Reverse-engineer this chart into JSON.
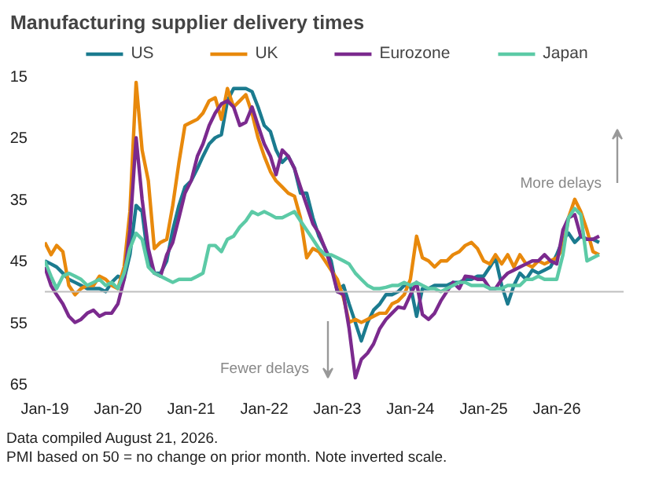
{
  "chart_data": {
    "type": "line",
    "title": "Manufacturing supplier delivery times",
    "x": [
      "2019-01",
      "2019-02",
      "2019-03",
      "2019-04",
      "2019-05",
      "2019-06",
      "2019-07",
      "2019-08",
      "2019-09",
      "2019-10",
      "2019-11",
      "2019-12",
      "2020-01",
      "2020-02",
      "2020-03",
      "2020-04",
      "2020-05",
      "2020-06",
      "2020-07",
      "2020-08",
      "2020-09",
      "2020-10",
      "2020-11",
      "2020-12",
      "2021-01",
      "2021-02",
      "2021-03",
      "2021-04",
      "2021-05",
      "2021-06",
      "2021-07",
      "2021-08",
      "2021-09",
      "2021-10",
      "2021-11",
      "2021-12",
      "2022-01",
      "2022-02",
      "2022-03",
      "2022-04",
      "2022-05",
      "2022-06",
      "2022-07",
      "2022-08",
      "2022-09",
      "2022-10",
      "2022-11",
      "2022-12",
      "2023-01",
      "2023-02",
      "2023-03",
      "2023-04",
      "2023-05",
      "2023-06",
      "2023-07",
      "2023-08",
      "2023-09",
      "2023-10",
      "2023-11",
      "2023-12",
      "2024-01",
      "2024-02",
      "2024-03",
      "2024-04",
      "2024-05",
      "2024-06",
      "2024-07",
      "2024-08",
      "2024-09",
      "2024-10",
      "2024-11",
      "2024-12",
      "2025-01",
      "2025-02",
      "2025-03",
      "2025-04",
      "2025-05",
      "2025-06",
      "2025-07",
      "2025-08",
      "2025-09",
      "2025-10",
      "2025-11",
      "2025-12",
      "2026-01",
      "2026-02",
      "2026-03",
      "2026-04",
      "2026-05",
      "2026-06",
      "2026-07",
      "2026-08"
    ],
    "series": [
      {
        "name": "US",
        "color": "#1b7b8f",
        "values": [
          45,
          45.5,
          46,
          47,
          48,
          48.5,
          49,
          49.5,
          49.5,
          49.5,
          50,
          48.5,
          47.5,
          48,
          44,
          36,
          37,
          45,
          47,
          47,
          45,
          40,
          36,
          33,
          32,
          30,
          28,
          26,
          25,
          24.5,
          19,
          17,
          17,
          17,
          17.5,
          20,
          23,
          24,
          27,
          29,
          28,
          30,
          34,
          34,
          38,
          41,
          43,
          45,
          50,
          49,
          52,
          55,
          58,
          55,
          53,
          52,
          50.5,
          50.5,
          50,
          49,
          49,
          54,
          49.5,
          49.5,
          49,
          49,
          49,
          48.5,
          48.5,
          48,
          48,
          47.5,
          47.5,
          46,
          44.5,
          49,
          52,
          49,
          47,
          48,
          46.5,
          47,
          46.5,
          46,
          44,
          41.5,
          40.5,
          42,
          41,
          41.5,
          41.5,
          42
        ]
      },
      {
        "name": "UK",
        "color": "#e8890c",
        "values": [
          42,
          44,
          42.5,
          43.5,
          49,
          50.5,
          49.5,
          49,
          49,
          47.5,
          48,
          49,
          49.5,
          46,
          37,
          16,
          27,
          32,
          43,
          42,
          41.5,
          36,
          29,
          23,
          22.5,
          22,
          21,
          19,
          18.5,
          22,
          17,
          20,
          19,
          18,
          21,
          25,
          28,
          30.5,
          32,
          33,
          34,
          34.5,
          38,
          44.5,
          43,
          43.5,
          45,
          46.5,
          48,
          51,
          55,
          54.5,
          55,
          54.5,
          54,
          53.5,
          53.5,
          52,
          51.5,
          50.5,
          48,
          41,
          44.5,
          45,
          46,
          45,
          45,
          44,
          43.5,
          42.5,
          42,
          43,
          45,
          45.5,
          44,
          45.5,
          44,
          46,
          44,
          45.5,
          46,
          45,
          45.5,
          45,
          44.5,
          43,
          38,
          35,
          37,
          40,
          43.5,
          44
        ]
      },
      {
        "name": "Eurozone",
        "color": "#7b2a8e",
        "values": [
          46,
          49,
          50.5,
          52,
          54,
          55,
          54.5,
          53.5,
          53,
          54,
          53.5,
          53.5,
          52,
          48,
          40,
          25,
          35,
          43,
          47,
          47.5,
          44,
          42,
          38,
          34,
          32,
          28,
          26,
          23,
          21,
          19.5,
          19,
          20,
          23,
          22.5,
          20,
          23,
          26,
          28,
          31,
          27,
          28,
          30,
          33,
          36,
          39,
          40.5,
          43,
          46,
          50,
          50.5,
          56,
          64,
          61,
          60,
          58.5,
          56,
          54.5,
          53.5,
          52.5,
          52.7,
          50.5,
          48.5,
          53.7,
          54.5,
          53.5,
          51.5,
          50,
          48.5,
          49.5,
          47.5,
          47.6,
          48,
          48,
          49.5,
          49.5,
          48,
          47,
          46.5,
          46,
          45.5,
          45,
          45,
          44,
          45,
          45.5,
          40,
          38,
          37.5,
          41,
          41.5,
          41.5,
          41
        ]
      },
      {
        "name": "Japan",
        "color": "#5ccaa6",
        "values": [
          45,
          47.5,
          49.5,
          47.5,
          47,
          47.5,
          48,
          49,
          48.5,
          48,
          49,
          48.5,
          49.5,
          47,
          43,
          40.5,
          41.5,
          46,
          47,
          47.5,
          48,
          48.5,
          48,
          48,
          48,
          47.5,
          47,
          42.5,
          42.5,
          43.5,
          41.5,
          41,
          39.5,
          38.5,
          37,
          37.5,
          37,
          37.5,
          38,
          38,
          37.5,
          37,
          38.5,
          40,
          41.5,
          43,
          44,
          44,
          44.5,
          45,
          45.5,
          47,
          48,
          49,
          49.5,
          49.5,
          49.3,
          49,
          49,
          48.5,
          49,
          48.5,
          49,
          49.5,
          49.5,
          50,
          49.5,
          49,
          48.5,
          48.5,
          49,
          49,
          49,
          49.5,
          49.5,
          49.5,
          49,
          49,
          49,
          48,
          48,
          47.5,
          48,
          48,
          48,
          44,
          38,
          36.5,
          37.5,
          45,
          44.5,
          44
        ]
      }
    ],
    "xlim": [
      "2019-01",
      "2026-12"
    ],
    "xticks": [
      {
        "value": "2019-01",
        "label": "Jan-19"
      },
      {
        "value": "2020-01",
        "label": "Jan-20"
      },
      {
        "value": "2021-01",
        "label": "Jan-21"
      },
      {
        "value": "2022-01",
        "label": "Jan-22"
      },
      {
        "value": "2023-01",
        "label": "Jan-23"
      },
      {
        "value": "2024-01",
        "label": "Jan-24"
      },
      {
        "value": "2025-01",
        "label": "Jan-25"
      },
      {
        "value": "2026-01",
        "label": "Jan-26"
      }
    ],
    "ylim": [
      65,
      15
    ],
    "yticks": [
      15,
      25,
      35,
      45,
      55,
      65
    ],
    "ref_lines": [
      {
        "axis": "y",
        "value": 50,
        "color": "#bfbfbf"
      }
    ],
    "grid": false,
    "legend": "top",
    "line_style": "solid",
    "marker": "none",
    "annotations": [
      "More delays",
      "Fewer delays",
      "Data compiled August 21, 2026.",
      "PMI based on 50 = no change on prior month. Note inverted scale."
    ]
  }
}
